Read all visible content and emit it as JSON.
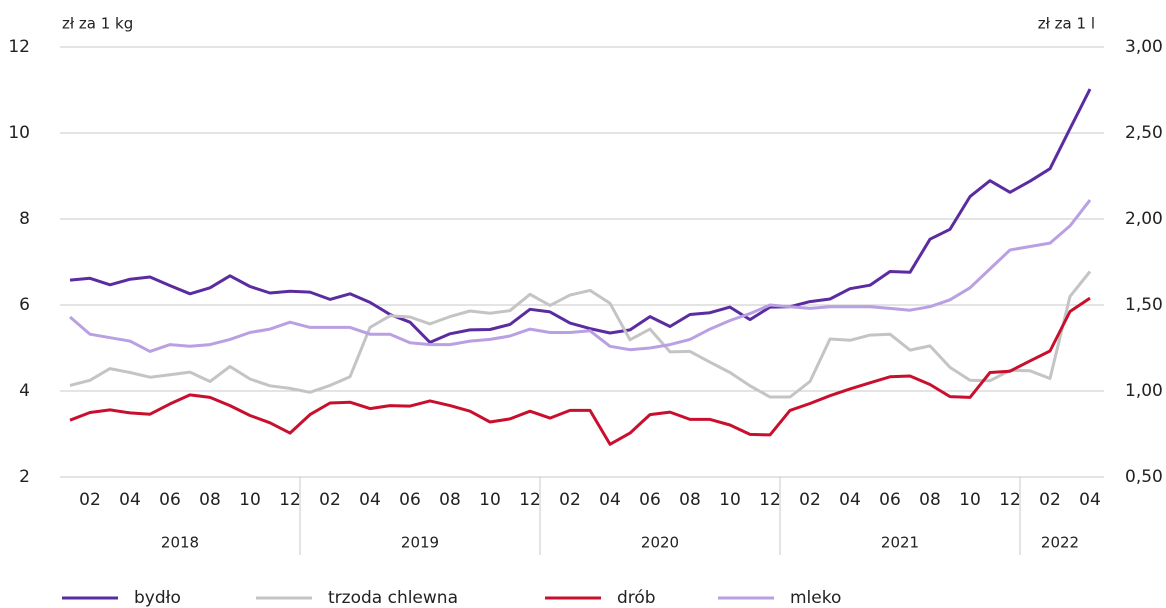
{
  "chart_data": {
    "type": "line",
    "y_label": "zł za 1 kg",
    "y2_label": "zł za 1 l",
    "categories": [
      null,
      "02",
      null,
      "04",
      null,
      "06",
      null,
      "08",
      null,
      "10",
      null,
      "12",
      null,
      "02",
      null,
      "04",
      null,
      "06",
      null,
      "08",
      null,
      "10",
      null,
      "12",
      null,
      "02",
      null,
      "04",
      null,
      "06",
      null,
      "08",
      null,
      "10",
      null,
      "12",
      null,
      "02",
      null,
      "04",
      null,
      "06",
      null,
      "08",
      null,
      "10",
      null,
      "12",
      null,
      "02",
      null,
      "04"
    ],
    "years": [
      "2018",
      "2019",
      "2020",
      "2021",
      "2022"
    ],
    "ylim": [
      2,
      12
    ],
    "yticks": [
      2,
      4,
      6,
      8,
      10,
      12
    ],
    "y2lim": [
      0.5,
      3.0
    ],
    "y2ticks": [
      {
        "value": 0.5,
        "label": "0,50"
      },
      {
        "value": 1.0,
        "label": "1,00"
      },
      {
        "value": 1.5,
        "label": "1,50"
      },
      {
        "value": 2.0,
        "label": "2,00"
      },
      {
        "value": 2.5,
        "label": "2,50"
      },
      {
        "value": 3.0,
        "label": "3,00"
      }
    ],
    "grid": true,
    "legend": "bottom",
    "series": [
      {
        "name": "bydło",
        "color": "#5a2ca0",
        "values": [
          6.58,
          6.62,
          6.47,
          6.6,
          6.65,
          6.45,
          6.26,
          6.4,
          6.68,
          6.43,
          6.28,
          6.32,
          6.3,
          6.13,
          6.26,
          6.06,
          5.78,
          5.6,
          5.13,
          5.33,
          5.42,
          5.43,
          5.55,
          5.9,
          5.84,
          5.58,
          5.45,
          5.35,
          5.42,
          5.73,
          5.5,
          5.78,
          5.82,
          5.95,
          5.66,
          5.95,
          5.96,
          6.08,
          6.14,
          6.38,
          6.46,
          6.78,
          6.76,
          7.53,
          7.76,
          8.52,
          8.89,
          8.62,
          8.88,
          9.17,
          10.1,
          11.02
        ]
      },
      {
        "name": "trzoda chlewna",
        "color": "#c4c4c4",
        "values": [
          4.13,
          4.25,
          4.52,
          4.43,
          4.32,
          4.38,
          4.44,
          4.22,
          4.57,
          4.28,
          4.12,
          4.06,
          3.97,
          4.13,
          4.33,
          5.48,
          5.75,
          5.72,
          5.56,
          5.73,
          5.86,
          5.81,
          5.87,
          6.25,
          5.99,
          6.23,
          6.34,
          6.04,
          5.19,
          5.44,
          4.91,
          4.92,
          4.67,
          4.43,
          4.12,
          3.86,
          3.86,
          4.22,
          5.21,
          5.18,
          5.3,
          5.32,
          4.95,
          5.05,
          4.55,
          4.25,
          4.24,
          4.48,
          4.47,
          4.29,
          6.2,
          6.78
        ]
      },
      {
        "name": "drób",
        "color": "#c8102e",
        "values": [
          3.32,
          3.5,
          3.56,
          3.49,
          3.46,
          3.7,
          3.91,
          3.85,
          3.66,
          3.43,
          3.26,
          3.02,
          3.45,
          3.72,
          3.74,
          3.59,
          3.66,
          3.65,
          3.77,
          3.66,
          3.53,
          3.28,
          3.35,
          3.53,
          3.37,
          3.55,
          3.55,
          2.76,
          3.02,
          3.45,
          3.51,
          3.34,
          3.34,
          3.21,
          2.99,
          2.98,
          3.55,
          3.71,
          3.89,
          4.05,
          4.19,
          4.33,
          4.35,
          4.15,
          3.87,
          3.85,
          4.43,
          4.46,
          4.7,
          4.93,
          5.85,
          6.16
        ]
      },
      {
        "name": "mleko",
        "color": "#b9a0e2",
        "axis": "y2",
        "values": [
          1.43,
          1.33,
          1.31,
          1.29,
          1.23,
          1.27,
          1.26,
          1.27,
          1.3,
          1.34,
          1.36,
          1.4,
          1.37,
          1.37,
          1.37,
          1.33,
          1.33,
          1.28,
          1.27,
          1.27,
          1.29,
          1.3,
          1.32,
          1.36,
          1.34,
          1.34,
          1.35,
          1.26,
          1.24,
          1.25,
          1.27,
          1.3,
          1.36,
          1.41,
          1.45,
          1.5,
          1.49,
          1.48,
          1.49,
          1.49,
          1.49,
          1.48,
          1.47,
          1.49,
          1.53,
          1.6,
          1.71,
          1.82,
          1.84,
          1.86,
          1.96,
          2.11
        ]
      }
    ]
  }
}
